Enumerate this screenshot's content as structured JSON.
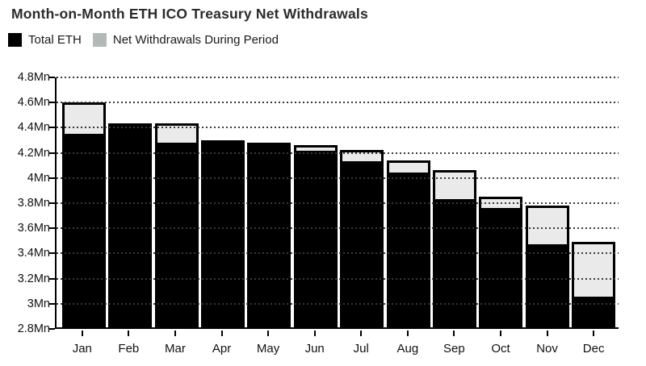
{
  "title": "Month-on-Month ETH ICO Treasury Net Withdrawals",
  "legend": [
    {
      "label": "Total ETH",
      "color": "#000000"
    },
    {
      "label": "Net Withdrawals During Period",
      "color": "#b3b9b7"
    }
  ],
  "chart_data": {
    "type": "bar",
    "stacked": true,
    "title": "Month-on-Month ETH ICO Treasury Net Withdrawals",
    "categories": [
      "Jan",
      "Feb",
      "Mar",
      "Apr",
      "May",
      "Jun",
      "Jul",
      "Aug",
      "Sep",
      "Oct",
      "Nov",
      "Dec"
    ],
    "series": [
      {
        "name": "Total ETH",
        "color": "#000000",
        "values": [
          4.36,
          4.42,
          4.29,
          4.29,
          4.27,
          4.22,
          4.14,
          4.05,
          3.84,
          3.77,
          3.48,
          3.06
        ]
      },
      {
        "name": "Net Withdrawals During Period",
        "color": "#eaeaea",
        "values": [
          0.23,
          0,
          0.13,
          0,
          0,
          0.03,
          0.07,
          0.08,
          0.21,
          0.07,
          0.29,
          0.42
        ]
      }
    ],
    "bar_totals": [
      4.59,
      4.42,
      4.42,
      4.29,
      4.27,
      4.25,
      4.21,
      4.13,
      4.05,
      3.84,
      3.77,
      3.48
    ],
    "unit": "Mn",
    "xlabel": "",
    "ylabel": "",
    "ylim": [
      2.8,
      4.8
    ],
    "ytick_step": 0.2,
    "ytick_labels": [
      "4.8Mn",
      "4.6Mn",
      "4.4Mn",
      "4.2Mn",
      "4Mn",
      "3.8Mn",
      "3.6Mn",
      "3.4Mn",
      "3.2Mn",
      "3Mn",
      "2.8Mn"
    ],
    "grid": "horizontal-dotted",
    "legend_position": "top-left"
  }
}
